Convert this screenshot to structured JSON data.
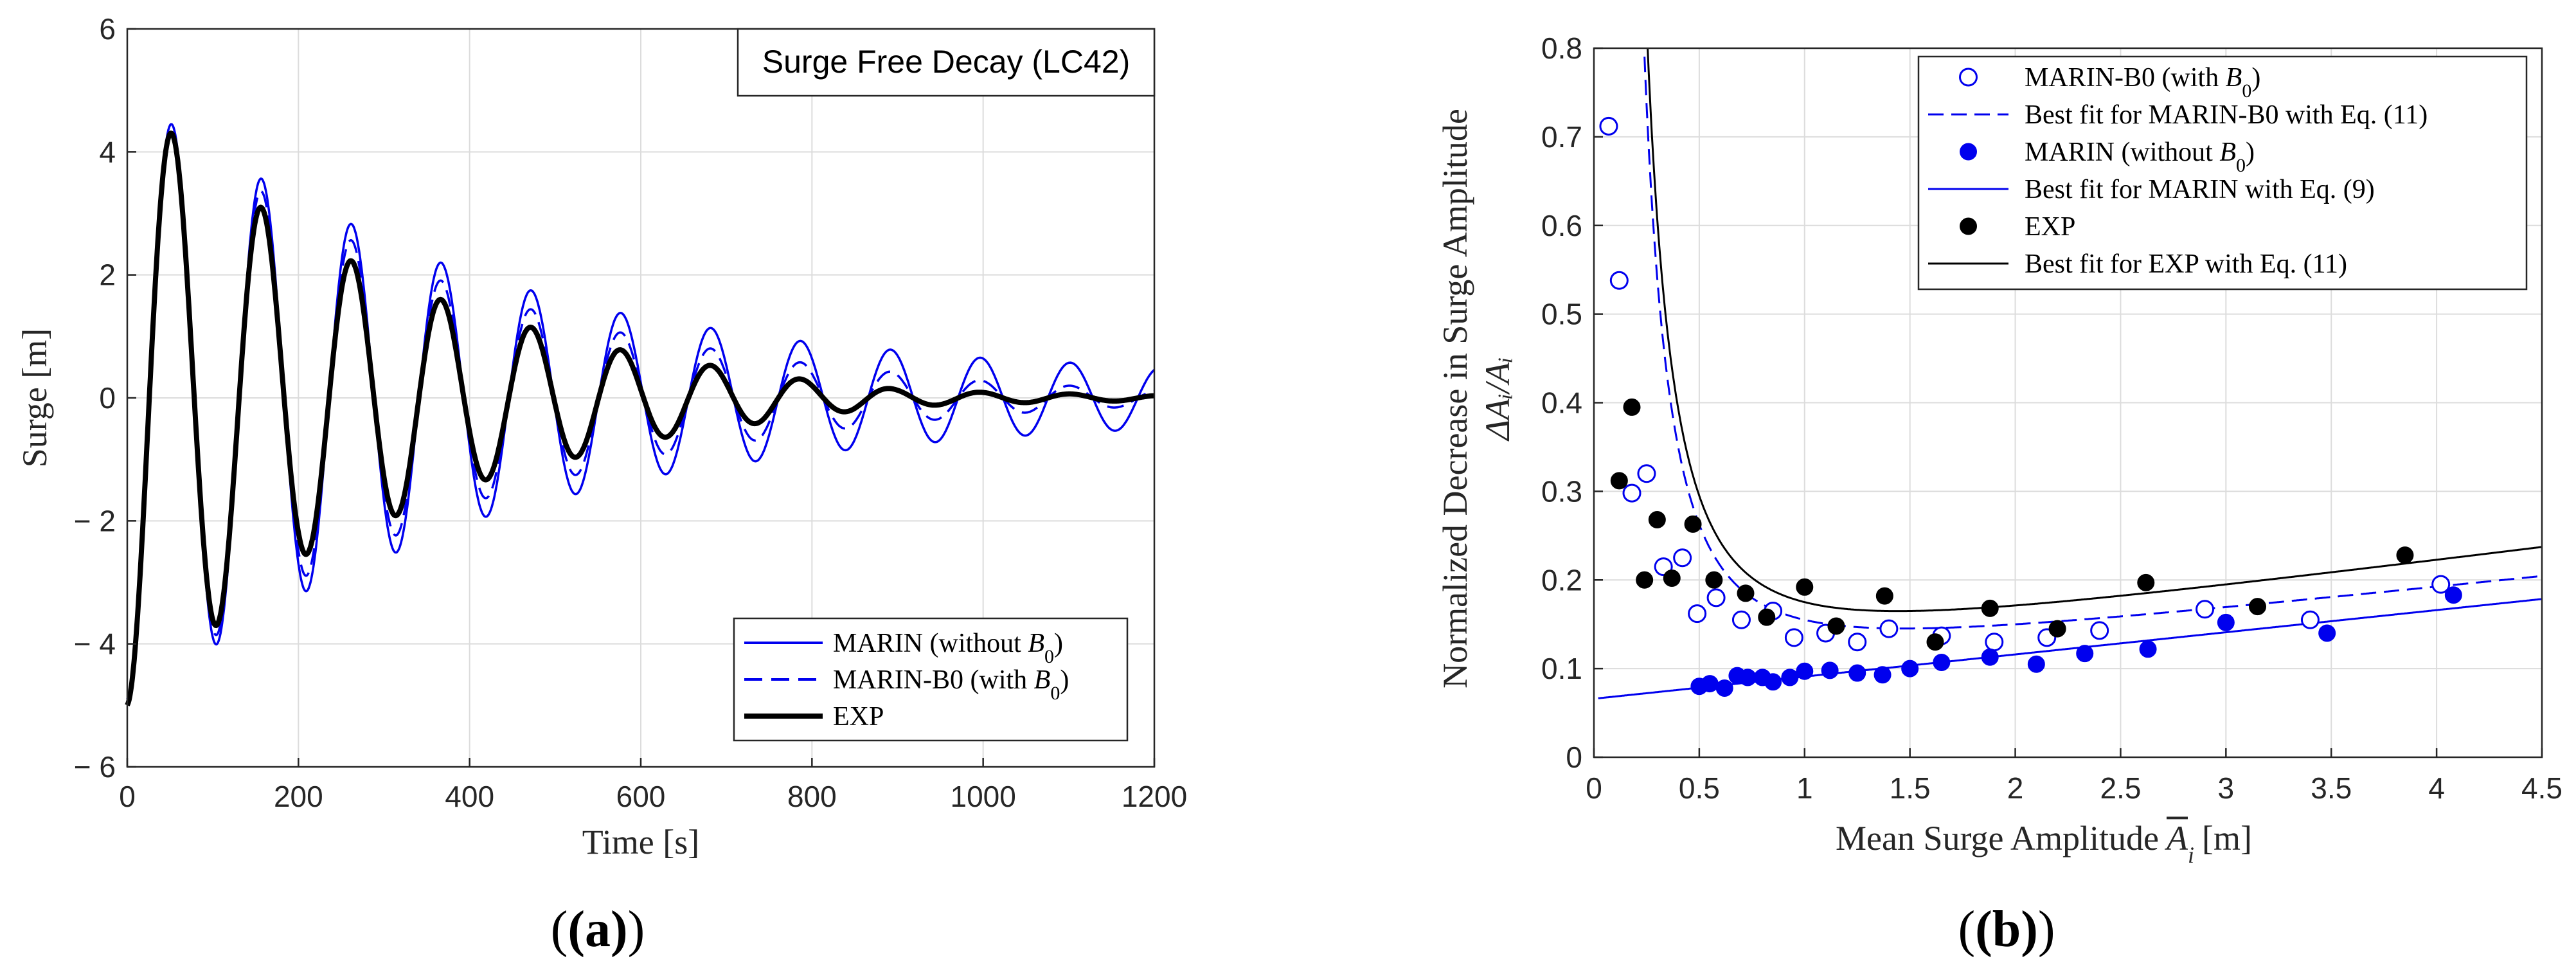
{
  "chart_data": [
    {
      "type": "line",
      "panel_label": "(a)",
      "title": "Surge Free Decay (LC42)",
      "xlabel": "Time [s]",
      "ylabel": "Surge [m]",
      "xlim": [
        0,
        1200
      ],
      "ylim": [
        -6,
        6
      ],
      "xticks": [
        0,
        200,
        400,
        600,
        800,
        1000,
        1200
      ],
      "yticks": [
        -6,
        -4,
        -2,
        0,
        2,
        4,
        6
      ],
      "xtick_labels": [
        "0",
        "200",
        "400",
        "600",
        "800",
        "1000",
        "1200"
      ],
      "ytick_labels": [
        "− 6",
        "− 4",
        "− 2",
        "0",
        "2",
        "4",
        "6"
      ],
      "grid": true,
      "legend_position": "bottom-right",
      "period_s": 105,
      "peak_time_s": 52,
      "series": [
        {
          "name": "MARIN (without B0)",
          "legend_label": "MARIN (without ",
          "legend_sub": "B",
          "legend_subscript": "0",
          "legend_tail": ")",
          "color": "#0000ee",
          "style": "solid",
          "envelope_t": [
            0,
            52,
            200,
            400,
            600,
            800,
            1000,
            1200
          ],
          "envelope_amp": [
            4.9,
            4.45,
            3.2,
            2.0,
            1.3,
            0.9,
            0.65,
            0.5
          ]
        },
        {
          "name": "MARIN-B0 (with B0)",
          "legend_label": "MARIN-B0 (with ",
          "legend_sub": "B",
          "legend_subscript": "0",
          "legend_tail": ")",
          "color": "#0000ee",
          "style": "dashed",
          "envelope_t": [
            0,
            52,
            200,
            400,
            600,
            800,
            1000,
            1200
          ],
          "envelope_amp": [
            4.9,
            4.35,
            2.95,
            1.7,
            0.98,
            0.55,
            0.28,
            0.12
          ]
        },
        {
          "name": "EXP",
          "legend_label": "EXP",
          "legend_sub": "",
          "legend_subscript": "",
          "legend_tail": "",
          "color": "#000000",
          "style": "solid-thick",
          "envelope_t": [
            0,
            52,
            200,
            400,
            600,
            800,
            900,
            1000,
            1200
          ],
          "envelope_amp": [
            5.0,
            4.3,
            2.6,
            1.4,
            0.7,
            0.28,
            0.14,
            0.09,
            0.04
          ]
        }
      ]
    },
    {
      "type": "scatter",
      "panel_label": "(b)",
      "xlabel": "Mean Surge Amplitude",
      "xlabel_symbol": "A",
      "xlabel_sub": "i",
      "xlabel_unit": "[m]",
      "ylabel": "Normalized Decrease in Surge Amplitude",
      "ylabel2": "ΔAᵢ/Aᵢ",
      "xlim": [
        0,
        4.5
      ],
      "ylim": [
        0,
        0.8
      ],
      "xticks": [
        0,
        0.5,
        1,
        1.5,
        2,
        2.5,
        3,
        3.5,
        4,
        4.5
      ],
      "yticks": [
        0,
        0.1,
        0.2,
        0.3,
        0.4,
        0.5,
        0.6,
        0.7,
        0.8
      ],
      "xtick_labels": [
        "0",
        "0.5",
        "1",
        "1.5",
        "2",
        "2.5",
        "3",
        "3.5",
        "4",
        "4.5"
      ],
      "ytick_labels": [
        "0",
        "0.1",
        "0.2",
        "0.3",
        "0.4",
        "0.5",
        "0.6",
        "0.7",
        "0.8"
      ],
      "grid": true,
      "legend_position": "top-right",
      "legend": [
        {
          "label": "MARIN-B0 (with ",
          "sub": "B",
          "subscript": "0",
          "tail": ")",
          "marker": "open-circle",
          "color": "#0000ee"
        },
        {
          "label": "Best fit for MARIN-B0 with Eq. (11)",
          "sub": "",
          "subscript": "",
          "tail": "",
          "marker": "dashed-line",
          "color": "#0000ee"
        },
        {
          "label": "MARIN (without ",
          "sub": "B",
          "subscript": "0",
          "tail": ")",
          "marker": "filled-circle",
          "color": "#0000ee"
        },
        {
          "label": "Best fit for MARIN with Eq. (9)",
          "sub": "",
          "subscript": "",
          "tail": "",
          "marker": "solid-line",
          "color": "#0000ee"
        },
        {
          "label": "EXP",
          "sub": "",
          "subscript": "",
          "tail": "",
          "marker": "filled-circle",
          "color": "#000000"
        },
        {
          "label": "Best fit for EXP with Eq. (11)",
          "sub": "",
          "subscript": "",
          "tail": "",
          "marker": "solid-line",
          "color": "#000000"
        }
      ],
      "series": [
        {
          "name": "MARIN-B0 (with B0)",
          "marker": "open-circle",
          "color": "#0000ee",
          "x": [
            0.07,
            0.12,
            0.18,
            0.25,
            0.33,
            0.42,
            0.49,
            0.58,
            0.7,
            0.85,
            0.95,
            1.1,
            1.25,
            1.4,
            1.65,
            1.9,
            2.15,
            2.4,
            2.9,
            3.4,
            4.02
          ],
          "y": [
            0.712,
            0.538,
            0.298,
            0.32,
            0.215,
            0.225,
            0.162,
            0.18,
            0.155,
            0.165,
            0.135,
            0.14,
            0.13,
            0.145,
            0.137,
            0.13,
            0.135,
            0.143,
            0.167,
            0.155,
            0.195
          ]
        },
        {
          "name": "MARIN (without B0)",
          "marker": "filled-circle",
          "color": "#0000ee",
          "x": [
            0.5,
            0.55,
            0.62,
            0.68,
            0.73,
            0.8,
            0.85,
            0.93,
            1.0,
            1.12,
            1.25,
            1.37,
            1.5,
            1.65,
            1.88,
            2.1,
            2.33,
            2.63,
            3.0,
            3.48,
            4.08
          ],
          "y": [
            0.08,
            0.083,
            0.078,
            0.092,
            0.09,
            0.09,
            0.085,
            0.09,
            0.097,
            0.098,
            0.095,
            0.093,
            0.1,
            0.107,
            0.113,
            0.105,
            0.117,
            0.122,
            0.152,
            0.14,
            0.183
          ]
        },
        {
          "name": "EXP",
          "marker": "filled-circle",
          "color": "#000000",
          "x": [
            0.12,
            0.18,
            0.24,
            0.3,
            0.37,
            0.47,
            0.57,
            0.72,
            0.82,
            1.0,
            1.15,
            1.38,
            1.62,
            1.88,
            2.2,
            2.62,
            3.15,
            3.85
          ],
          "y": [
            0.312,
            0.395,
            0.2,
            0.268,
            0.202,
            0.263,
            0.2,
            0.185,
            0.158,
            0.192,
            0.148,
            0.182,
            0.13,
            0.168,
            0.145,
            0.197,
            0.17,
            0.228
          ]
        },
        {
          "name": "Best fit for MARIN-B0 with Eq. (11)",
          "marker": "dashed-line",
          "color": "#0000ee",
          "fit": {
            "a": 0.04,
            "b": 0.09,
            "c": 0.025
          }
        },
        {
          "name": "Best fit for MARIN with Eq. (9)",
          "marker": "solid-line",
          "color": "#0000ee",
          "fit": {
            "a": 0.0,
            "b": 0.066,
            "c": 0.025
          }
        },
        {
          "name": "Best fit for EXP with Eq. (11)",
          "marker": "solid-line",
          "color": "#000000",
          "fit": {
            "a": 0.045,
            "b": 0.1,
            "c": 0.03
          }
        }
      ]
    }
  ]
}
